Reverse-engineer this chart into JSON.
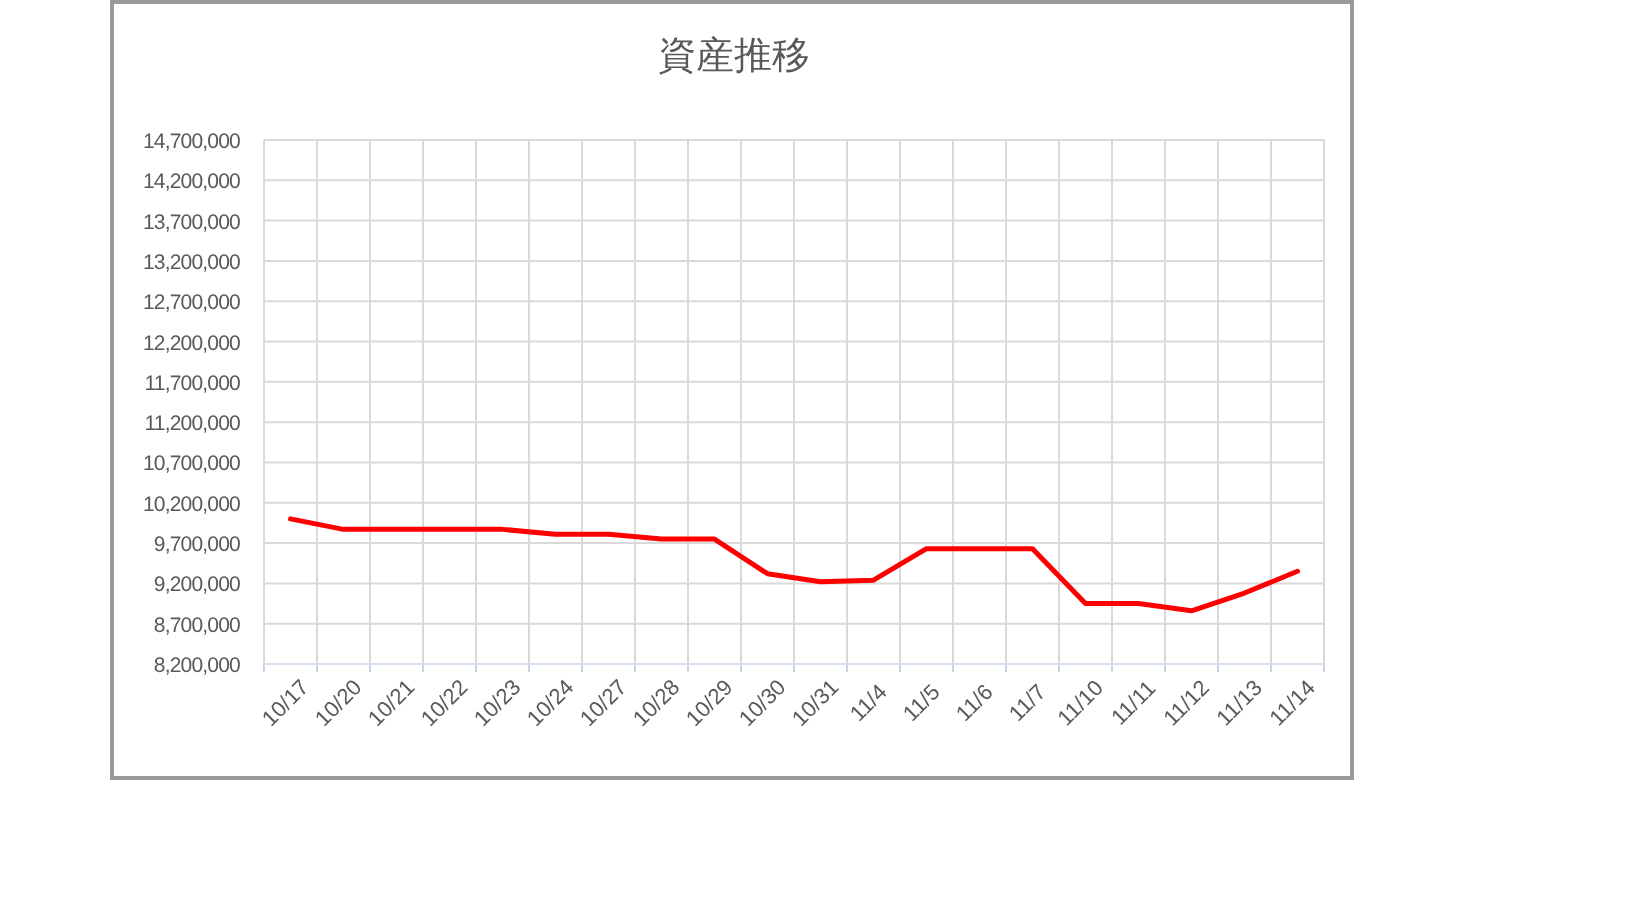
{
  "chart_data": {
    "type": "line",
    "title": "資産推移",
    "categories": [
      "10/17",
      "10/20",
      "10/21",
      "10/22",
      "10/23",
      "10/24",
      "10/27",
      "10/28",
      "10/29",
      "10/30",
      "10/31",
      "11/4",
      "11/5",
      "11/6",
      "11/7",
      "11/10",
      "11/11",
      "11/12",
      "11/13",
      "11/14"
    ],
    "series": [
      {
        "color": "#ff0000",
        "values": [
          10000000,
          9870000,
          9870000,
          9870000,
          9870000,
          9810000,
          9810000,
          9750000,
          9750000,
          9320000,
          9220000,
          9240000,
          9630000,
          9630000,
          9630000,
          8950000,
          8950000,
          8860000,
          9080000,
          9350000
        ]
      }
    ],
    "ylim": [
      8200000,
      14700000
    ],
    "yticks": [
      {
        "value": 8200000,
        "label": "8,200,000"
      },
      {
        "value": 8700000,
        "label": "8,700,000"
      },
      {
        "value": 9200000,
        "label": "9,200,000"
      },
      {
        "value": 9700000,
        "label": "9,700,000"
      },
      {
        "value": 10200000,
        "label": "10,200,000"
      },
      {
        "value": 10700000,
        "label": "10,700,000"
      },
      {
        "value": 11200000,
        "label": "11,200,000"
      },
      {
        "value": 11700000,
        "label": "11,700,000"
      },
      {
        "value": 12200000,
        "label": "12,200,000"
      },
      {
        "value": 12700000,
        "label": "12,700,000"
      },
      {
        "value": 13200000,
        "label": "13,200,000"
      },
      {
        "value": 13700000,
        "label": "13,700,000"
      },
      {
        "value": 14200000,
        "label": "14,200,000"
      },
      {
        "value": 14700000,
        "label": "14,700,000"
      }
    ],
    "grid": true,
    "marker": "none",
    "line_style": "solid"
  }
}
